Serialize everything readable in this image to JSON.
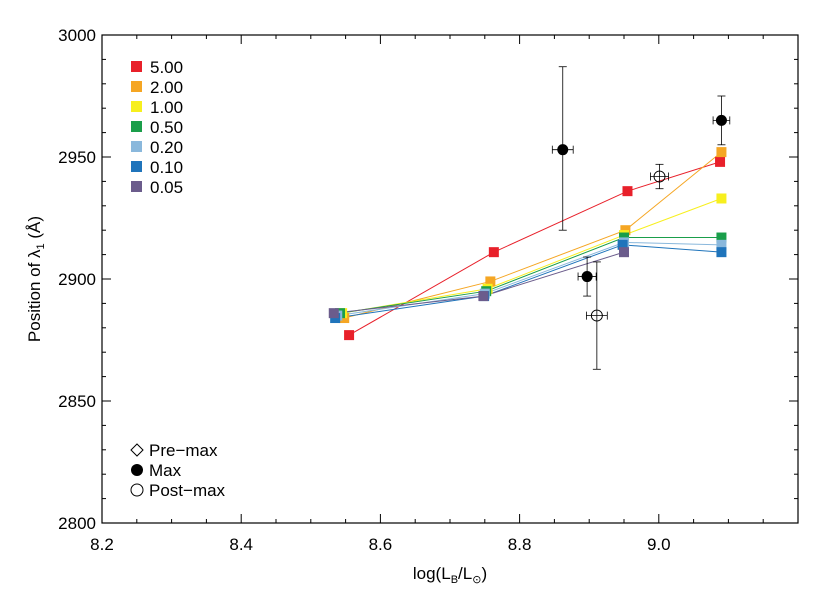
{
  "chart_data": {
    "type": "scatter",
    "xlabel": "log(L_B/L_⊙)",
    "xlabel_parts": {
      "prefix": "log(L",
      "sub1": "B",
      "mid": "/L",
      "sub2": "⊙",
      "suffix": ")"
    },
    "ylabel": "Position of λ1 (Å)",
    "ylabel_parts": {
      "prefix": "Position of λ",
      "sub": "1",
      "suffix": " (Å)"
    },
    "xlim": [
      8.2,
      9.2
    ],
    "ylim": [
      2800,
      3000
    ],
    "xticks": [
      8.2,
      8.4,
      8.6,
      8.8,
      9.0
    ],
    "xtick_labels": [
      "8.2",
      "8.4",
      "8.6",
      "8.8",
      "9.0"
    ],
    "yticks": [
      2800,
      2850,
      2900,
      2950,
      3000
    ],
    "ytick_labels": [
      "2800",
      "2850",
      "2900",
      "2950",
      "3000"
    ],
    "series": [
      {
        "name": "5.00",
        "color": "#e8202a",
        "points": [
          [
            8.555,
            2877
          ],
          [
            8.763,
            2911
          ],
          [
            8.955,
            2936
          ],
          [
            9.088,
            2948
          ]
        ]
      },
      {
        "name": "2.00",
        "color": "#f5a623",
        "points": [
          [
            8.548,
            2884
          ],
          [
            8.758,
            2899
          ],
          [
            8.952,
            2920
          ],
          [
            9.09,
            2952
          ]
        ]
      },
      {
        "name": "1.00",
        "color": "#f7ef1e",
        "points": [
          [
            8.545,
            2886
          ],
          [
            8.754,
            2896
          ],
          [
            8.95,
            2918
          ],
          [
            9.09,
            2933
          ]
        ]
      },
      {
        "name": "0.50",
        "color": "#1a9e4a",
        "points": [
          [
            8.542,
            2886
          ],
          [
            8.752,
            2895
          ],
          [
            8.95,
            2917
          ],
          [
            9.09,
            2917
          ]
        ]
      },
      {
        "name": "0.20",
        "color": "#8ab8dc",
        "points": [
          [
            8.538,
            2885
          ],
          [
            8.75,
            2894
          ],
          [
            8.95,
            2915
          ],
          [
            9.09,
            2914
          ]
        ]
      },
      {
        "name": "0.10",
        "color": "#1f74bb",
        "points": [
          [
            8.535,
            2884
          ],
          [
            8.749,
            2893
          ],
          [
            8.948,
            2914
          ],
          [
            9.09,
            2911
          ]
        ]
      },
      {
        "name": "0.05",
        "color": "#6b5c8c",
        "points": [
          [
            8.533,
            2886
          ],
          [
            8.748,
            2893
          ],
          [
            8.95,
            2911
          ]
        ]
      }
    ],
    "observations": [
      {
        "phase": "Max",
        "x": 8.862,
        "y": 2953,
        "yerr_low": 33,
        "yerr_high": 34,
        "xerr": 0.015
      },
      {
        "phase": "Max",
        "x": 8.897,
        "y": 2901,
        "yerr_low": 8,
        "yerr_high": 8,
        "xerr": 0.013
      },
      {
        "phase": "Max",
        "x": 9.09,
        "y": 2965,
        "yerr_low": 10,
        "yerr_high": 10,
        "xerr": 0.012
      },
      {
        "phase": "Post-max",
        "x": 9.001,
        "y": 2942,
        "yerr_low": 5,
        "yerr_high": 5,
        "xerr": 0.013
      },
      {
        "phase": "Post-max",
        "x": 8.911,
        "y": 2885,
        "yerr_low": 22,
        "yerr_high": 22,
        "xerr": 0.015
      }
    ],
    "phase_legend": [
      {
        "label": "Pre−max",
        "marker": "diamond-open"
      },
      {
        "label": "Max",
        "marker": "circle-filled"
      },
      {
        "label": "Post−max",
        "marker": "circle-open"
      }
    ]
  }
}
